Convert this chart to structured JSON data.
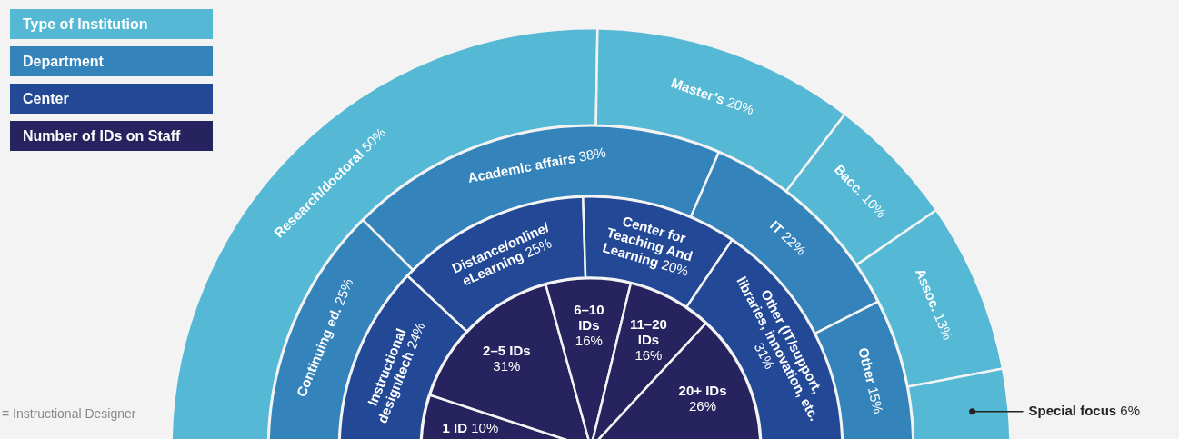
{
  "chart_data": [
    {
      "type": "donut",
      "legend": "top left",
      "categories": [
        "Research/doctoral",
        "Master’s",
        "Bacc.",
        "Assoc.",
        "Special focus"
      ],
      "series": [
        {
          "name": "Type of Institution",
          "color": "#55b9d5",
          "values": [
            50,
            20,
            10,
            13,
            6
          ],
          "value_labels": [
            "50%",
            "20%",
            "10%",
            "13%",
            "6%"
          ]
        }
      ]
    },
    {
      "type": "donut",
      "legend": "top left",
      "categories": [
        "Continuing ed.",
        "Academic affairs",
        "IT",
        "Other"
      ],
      "series": [
        {
          "name": "Department",
          "color": "#3483bb",
          "values": [
            25,
            38,
            22,
            15
          ],
          "value_labels": [
            "25%",
            "38%",
            "22%",
            "15%"
          ]
        }
      ]
    },
    {
      "type": "donut",
      "legend": "top left",
      "categories": [
        "Instructional design/tech",
        "Distance/online/ eLearning",
        "Center for Teaching And Learning",
        "Other (IT/support, libraries, innovation, etc."
      ],
      "series": [
        {
          "name": "Center",
          "color": "#224896",
          "values": [
            24,
            25,
            20,
            31
          ],
          "value_labels": [
            "24%",
            "25%",
            "20%",
            "31%"
          ]
        }
      ]
    },
    {
      "type": "pie",
      "legend": "top left",
      "annotations": [
        "= Instructional Designer"
      ],
      "categories": [
        "1 ID",
        "2–5 IDs",
        "6–10 IDs",
        "11–20 IDs",
        "20+ IDs"
      ],
      "series": [
        {
          "name": "Number of IDs on Staff",
          "color": "#27235e",
          "values": [
            10,
            31,
            16,
            16,
            26
          ],
          "value_labels": [
            "10%",
            "31%",
            "16%",
            "16%",
            "26%"
          ]
        }
      ]
    }
  ]
}
